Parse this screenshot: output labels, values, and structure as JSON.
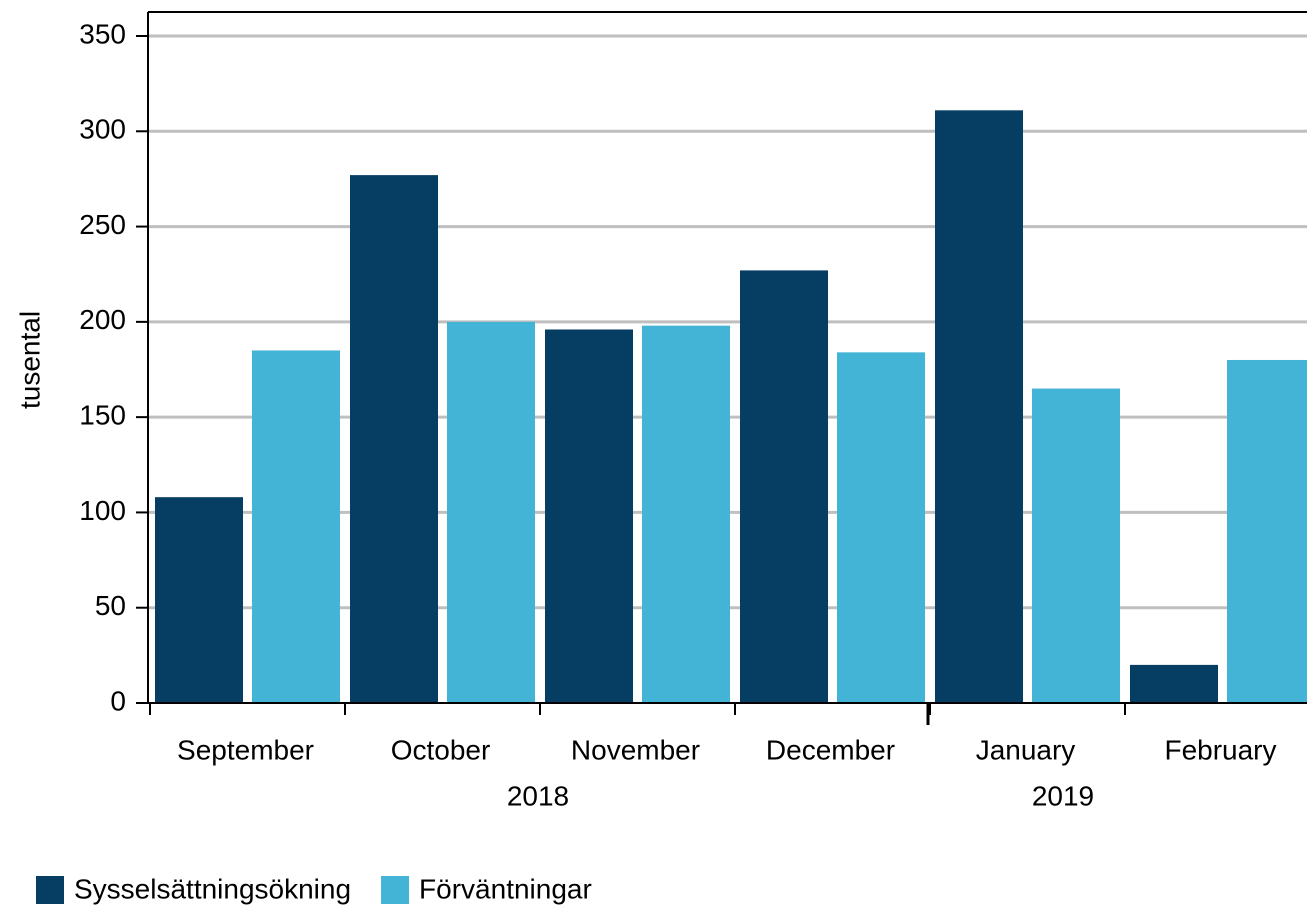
{
  "chart_data": {
    "type": "bar",
    "ylabel": "tusental",
    "categories": [
      "September",
      "October",
      "November",
      "December",
      "January",
      "February"
    ],
    "x_groups": [
      {
        "label": "2018",
        "count": 4
      },
      {
        "label": "2019",
        "count": 2
      }
    ],
    "series": [
      {
        "name": "Sysselsättningsökning",
        "color": "#063d63",
        "values": [
          108,
          277,
          196,
          227,
          311,
          20
        ]
      },
      {
        "name": "Förväntningar",
        "color": "#43b3d6",
        "values": [
          185,
          200,
          198,
          184,
          165,
          180
        ]
      }
    ],
    "ylim": [
      0,
      350
    ],
    "yticks": [
      0,
      50,
      100,
      150,
      200,
      250,
      300,
      350
    ],
    "grid": true,
    "legend": "bottom-left"
  }
}
